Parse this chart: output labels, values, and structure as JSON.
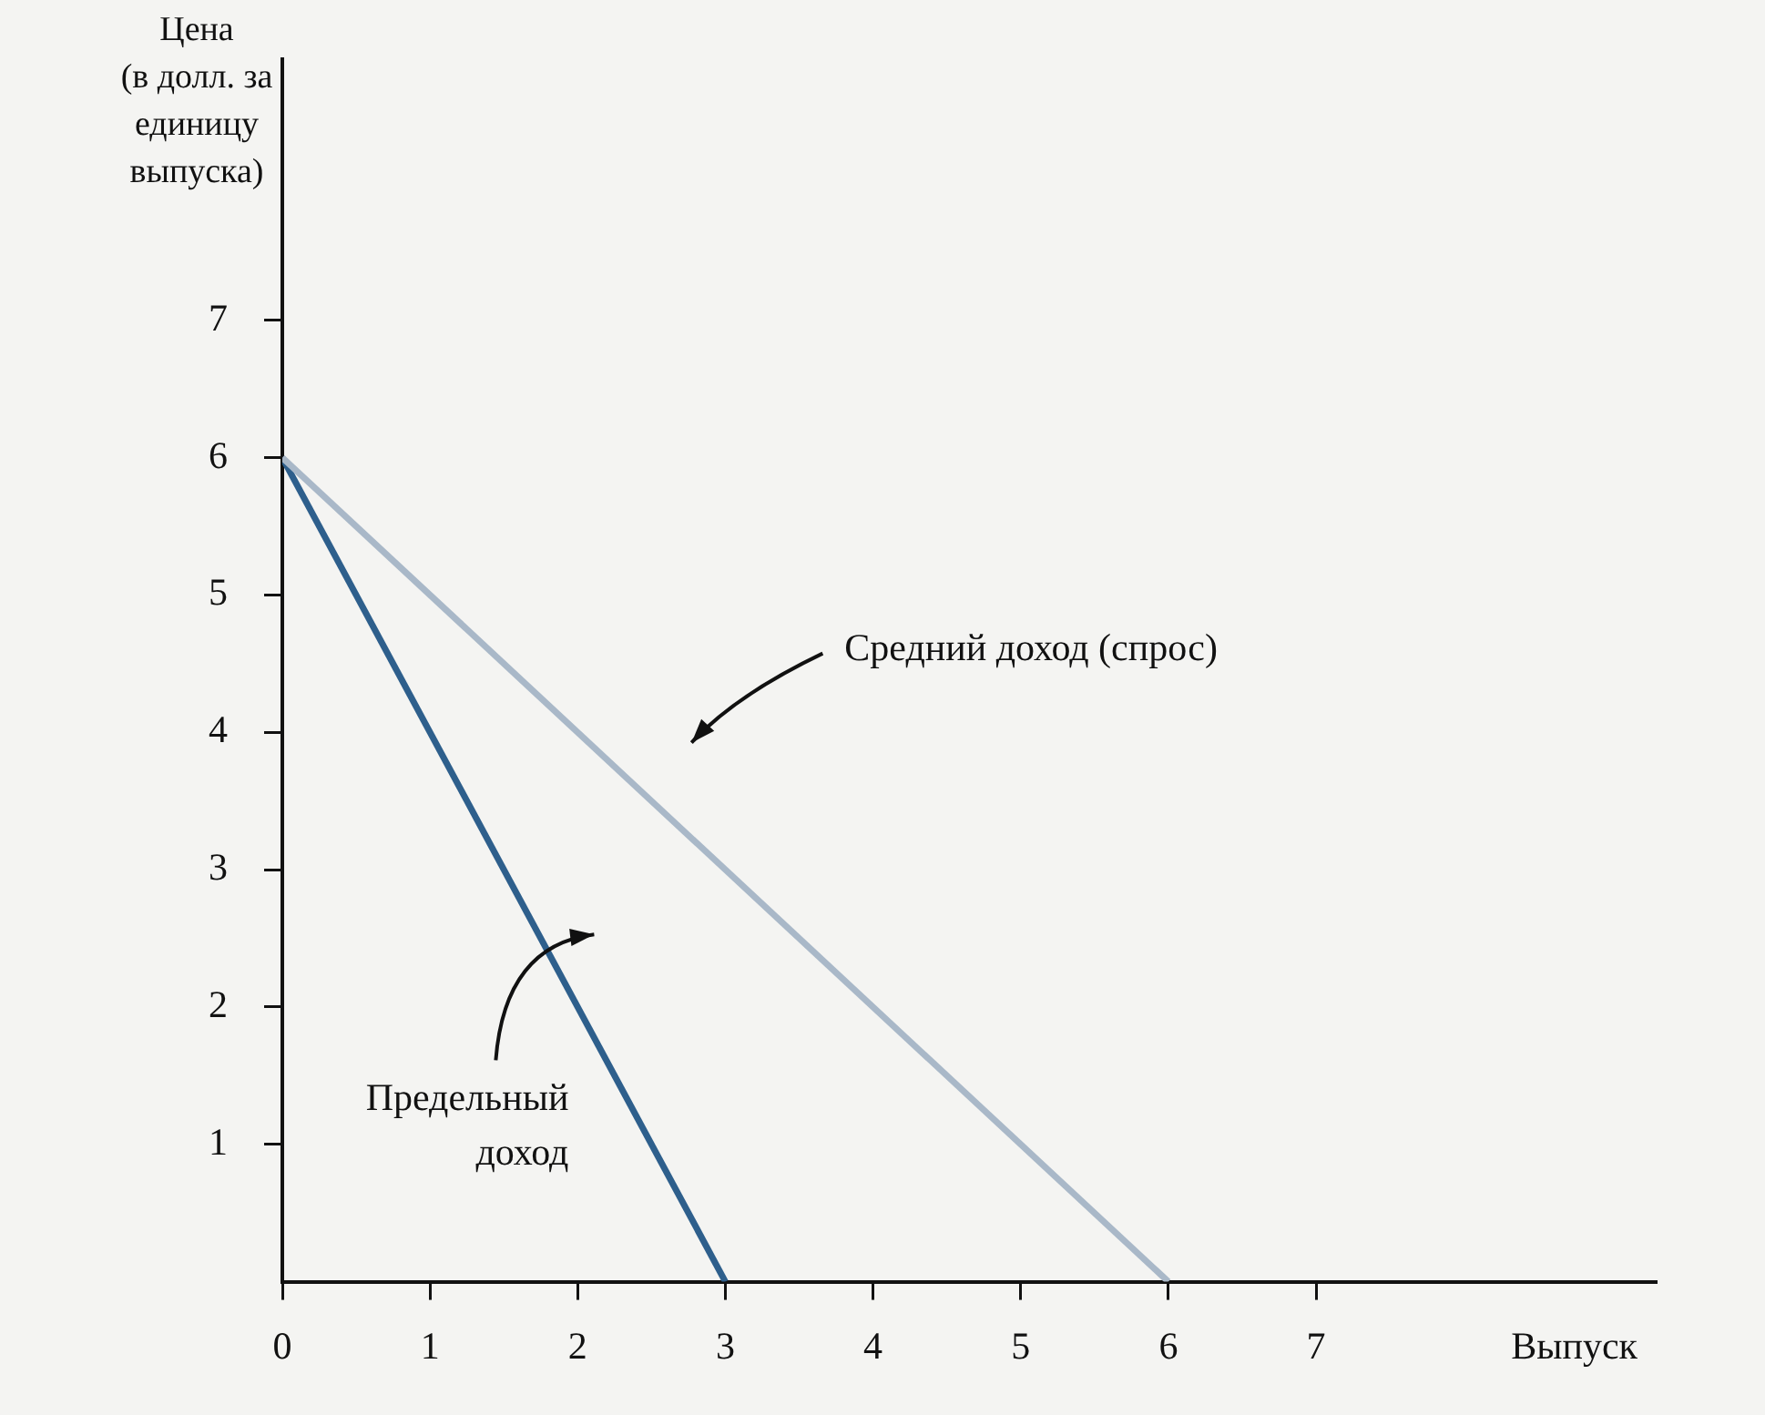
{
  "chart_data": {
    "type": "line",
    "ylabel": "Цена (в долл. за единицу выпуска)",
    "xlabel": "Выпуск",
    "series": [
      {
        "color": "#a9b8c8",
        "x": [
          0,
          6
        ],
        "values": [
          6,
          0
        ]
      },
      {
        "color": "#2e5f8c",
        "x": [
          0,
          3
        ],
        "values": [
          6,
          0
        ]
      }
    ],
    "xlim": [
      0,
      9.3
    ],
    "ylim": [
      0,
      8.9
    ],
    "xticks": [
      0,
      1,
      2,
      3,
      4,
      5,
      6,
      7
    ],
    "yticks": [
      1,
      2,
      3,
      4,
      5,
      6,
      7
    ],
    "annotations": [
      "Средний доход (спрос)",
      "Предельный доход"
    ],
    "grid": false,
    "legend": false,
    "marker": "none",
    "line_style": "solid"
  }
}
